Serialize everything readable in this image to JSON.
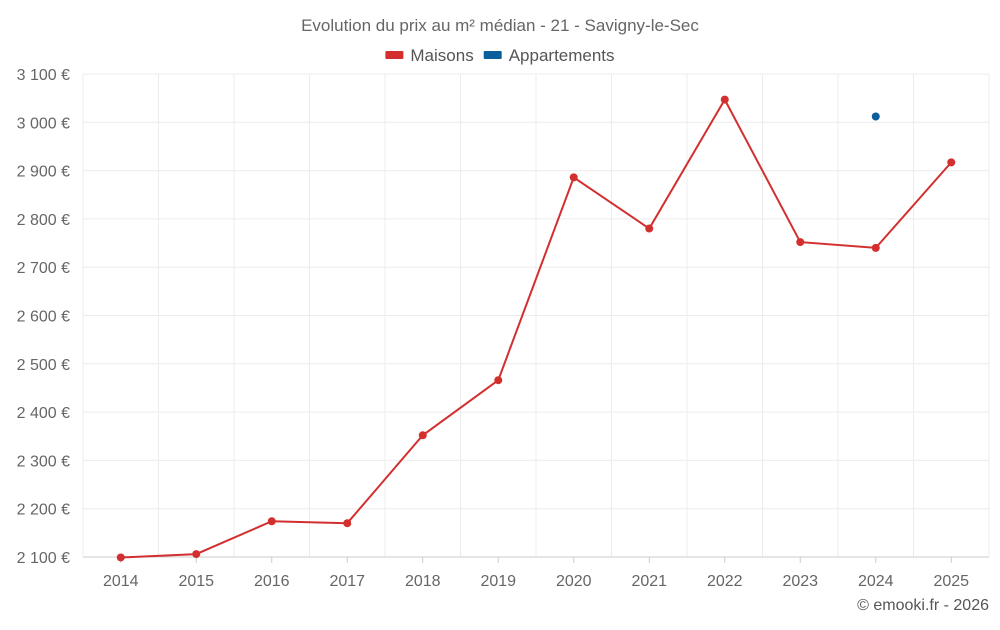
{
  "chart_data": {
    "type": "line",
    "title": "Evolution du prix au m² médian - 21 - Savigny-le-Sec",
    "categories": [
      "2014",
      "2015",
      "2016",
      "2017",
      "2018",
      "2019",
      "2020",
      "2021",
      "2022",
      "2023",
      "2024",
      "2025"
    ],
    "y_ticks": [
      2100,
      2200,
      2300,
      2400,
      2500,
      2600,
      2700,
      2800,
      2900,
      3000,
      3100
    ],
    "y_tick_labels": [
      "2 100 €",
      "2 200 €",
      "2 300 €",
      "2 400 €",
      "2 500 €",
      "2 600 €",
      "2 700 €",
      "2 800 €",
      "2 900 €",
      "3 000 €",
      "3 100 €"
    ],
    "ylim": [
      2100,
      3100
    ],
    "xlabel": "",
    "ylabel": "",
    "grid": true,
    "legend_position": "top-center",
    "series": [
      {
        "name": "Maisons",
        "color": "#d32f2f",
        "values": [
          2099,
          2106,
          2174,
          2170,
          2352,
          2466,
          2886,
          2780,
          3047,
          2752,
          2740,
          2917
        ]
      },
      {
        "name": "Appartements",
        "color": "#0a5e9c",
        "values": [
          null,
          null,
          null,
          null,
          null,
          null,
          null,
          null,
          null,
          null,
          3012,
          null
        ]
      }
    ],
    "credit": "© emooki.fr - 2026"
  }
}
